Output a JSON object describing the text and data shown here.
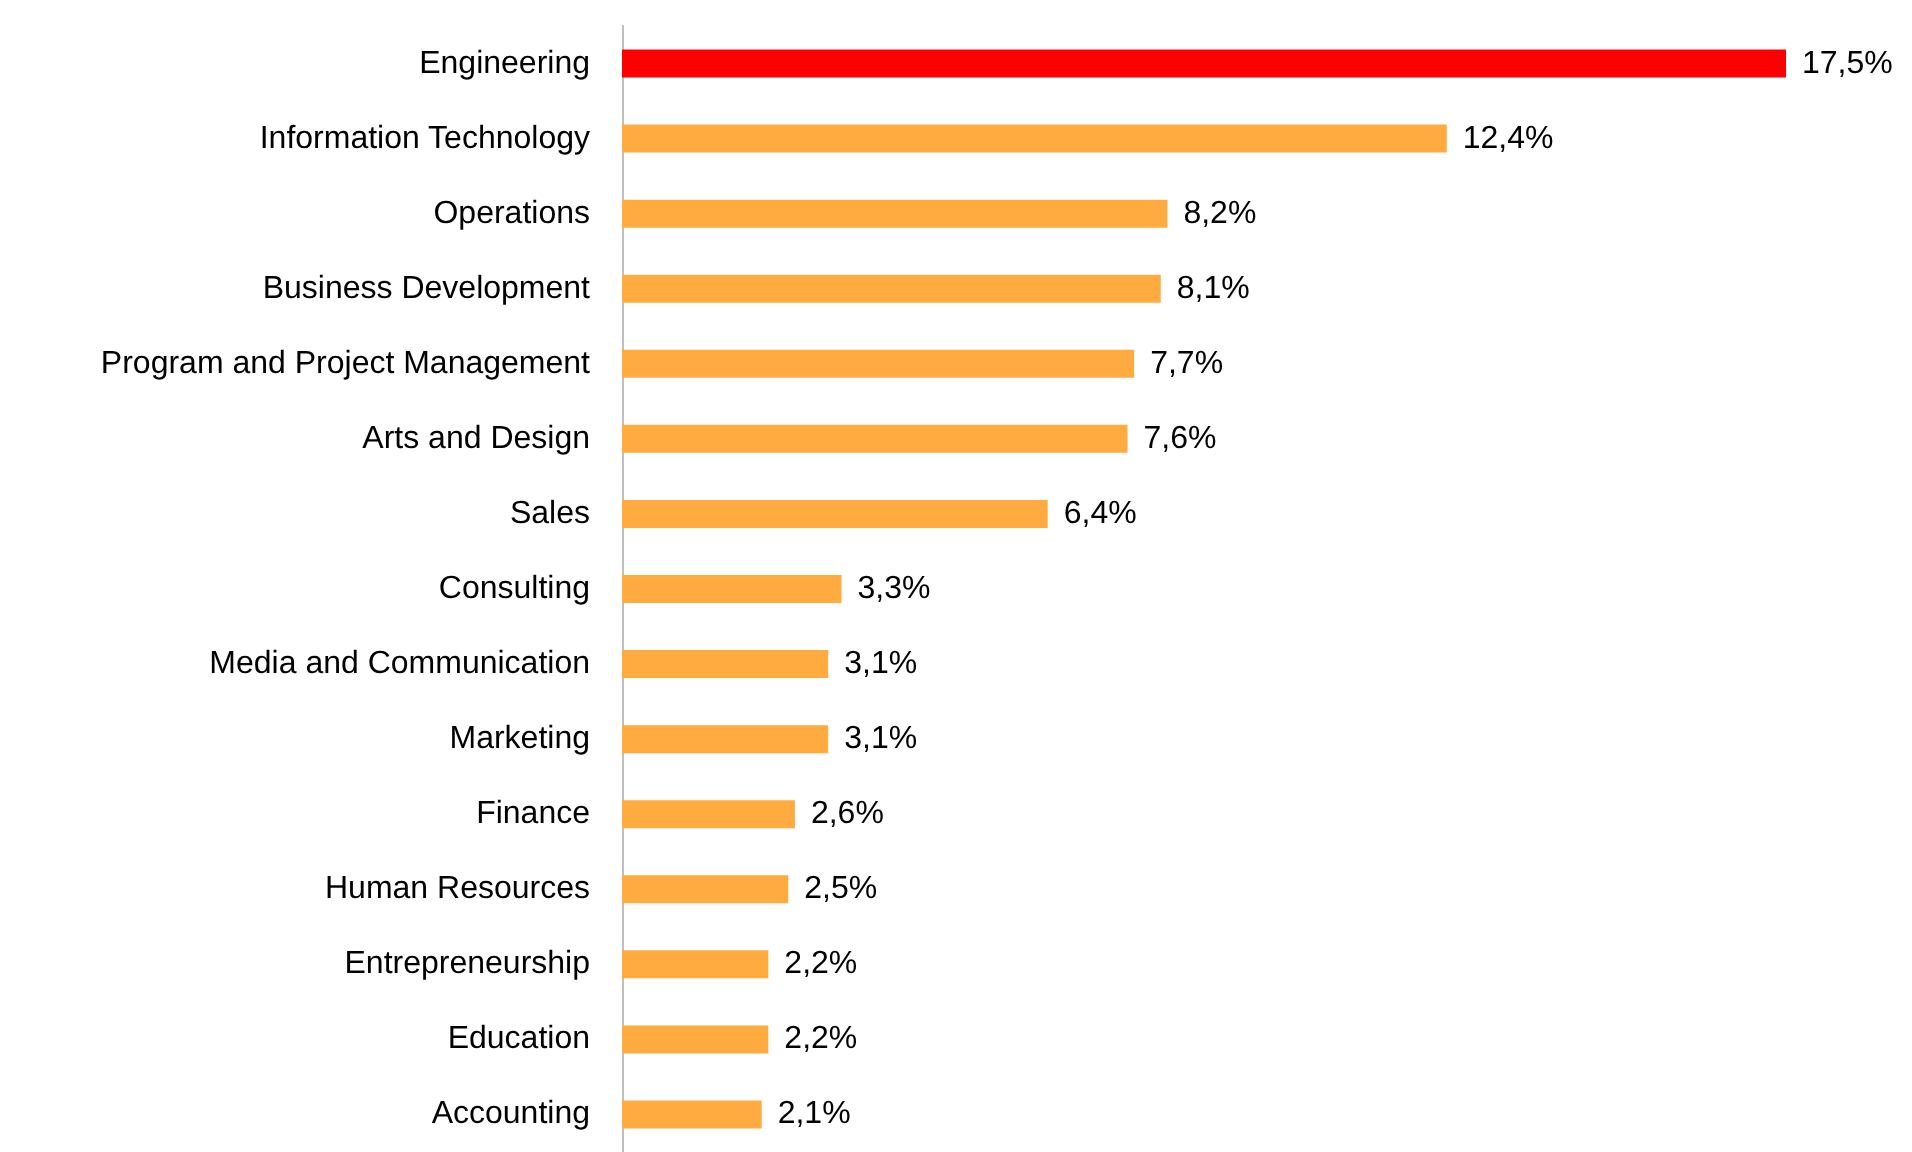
{
  "chart_data": {
    "type": "bar",
    "orientation": "horizontal",
    "categories": [
      "Engineering",
      "Information Technology",
      "Operations",
      "Business Development",
      "Program and Project Management",
      "Arts and Design",
      "Sales",
      "Consulting",
      "Media and Communication",
      "Marketing",
      "Finance",
      "Human Resources",
      "Entrepreneurship",
      "Education",
      "Accounting"
    ],
    "values": [
      17.5,
      12.4,
      8.2,
      8.1,
      7.7,
      7.6,
      6.4,
      3.3,
      3.1,
      3.1,
      2.6,
      2.5,
      2.2,
      2.2,
      2.1
    ],
    "value_labels": [
      "17,5%",
      "12,4%",
      "8,2%",
      "8,1%",
      "7,7%",
      "7,6%",
      "6,4%",
      "3,3%",
      "3,1%",
      "3,1%",
      "2,6%",
      "2,5%",
      "2,2%",
      "2,2%",
      "2,1%"
    ],
    "colors": [
      "#ff0000",
      "#ffab40",
      "#ffab40",
      "#ffab40",
      "#ffab40",
      "#ffab40",
      "#ffab40",
      "#ffab40",
      "#ffab40",
      "#ffab40",
      "#ffab40",
      "#ffab40",
      "#ffab40",
      "#ffab40",
      "#ffab40"
    ]
  }
}
